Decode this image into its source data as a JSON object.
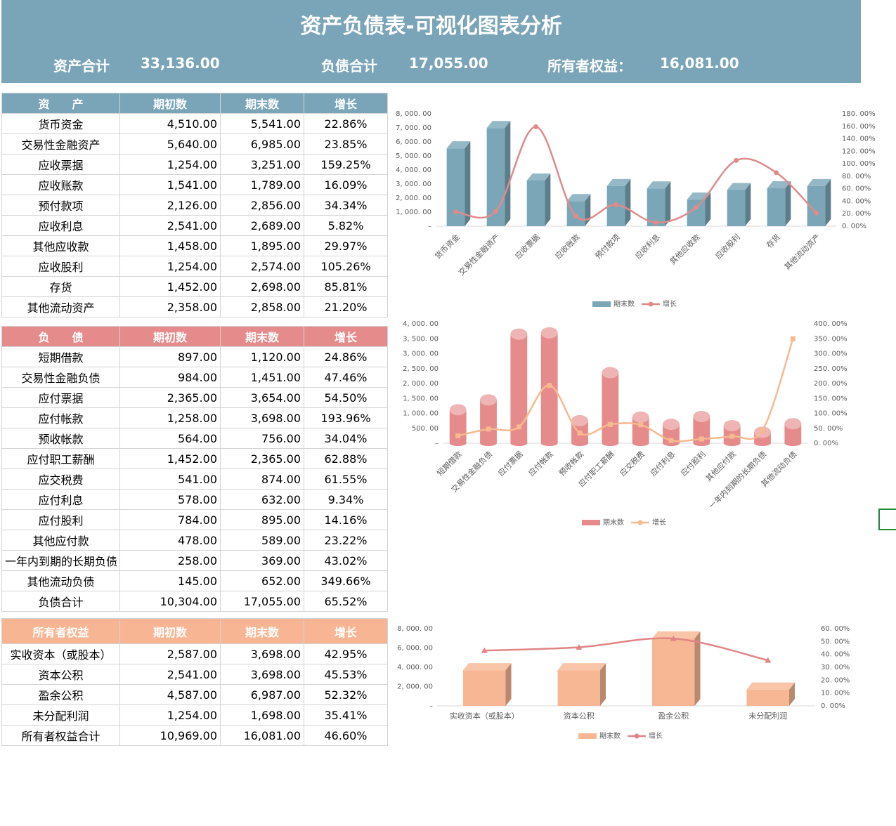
{
  "header": {
    "title": "资产负债表-可视化图表分析",
    "summary": [
      {
        "label": "资产合计",
        "value": "33,136.00"
      },
      {
        "label": "负债合计",
        "value": "17,055.00"
      },
      {
        "label": "所有者权益：",
        "value": "16,081.00"
      }
    ]
  },
  "tables": [
    {
      "header": [
        "资　　产",
        "期初数",
        "期末数",
        "增长"
      ],
      "rows": [
        [
          "货币资金",
          "4,510.00",
          "5,541.00",
          "22.86%"
        ],
        [
          "交易性金融资产",
          "5,640.00",
          "6,985.00",
          "23.85%"
        ],
        [
          "应收票据",
          "1,254.00",
          "3,251.00",
          "159.25%"
        ],
        [
          "应收账款",
          "1,541.00",
          "1,789.00",
          "16.09%"
        ],
        [
          "预付款项",
          "2,126.00",
          "2,856.00",
          "34.34%"
        ],
        [
          "应收利息",
          "2,541.00",
          "2,689.00",
          "5.82%"
        ],
        [
          "其他应收款",
          "1,458.00",
          "1,895.00",
          "29.97%"
        ],
        [
          "应收股利",
          "1,254.00",
          "2,574.00",
          "105.26%"
        ],
        [
          "存货",
          "1,452.00",
          "2,698.00",
          "85.81%"
        ],
        [
          "其他流动资产",
          "2,358.00",
          "2,858.00",
          "21.20%"
        ]
      ]
    },
    {
      "header": [
        "负　　债",
        "期初数",
        "期末数",
        "增长"
      ],
      "rows": [
        [
          "短期借款",
          "897.00",
          "1,120.00",
          "24.86%"
        ],
        [
          "交易性金融负债",
          "984.00",
          "1,451.00",
          "47.46%"
        ],
        [
          "应付票据",
          "2,365.00",
          "3,654.00",
          "54.50%"
        ],
        [
          "应付帐款",
          "1,258.00",
          "3,698.00",
          "193.96%"
        ],
        [
          "预收帐款",
          "564.00",
          "756.00",
          "34.04%"
        ],
        [
          "应付职工薪酬",
          "1,452.00",
          "2,365.00",
          "62.88%"
        ],
        [
          "应交税费",
          "541.00",
          "874.00",
          "61.55%"
        ],
        [
          "应付利息",
          "578.00",
          "632.00",
          "9.34%"
        ],
        [
          "应付股利",
          "784.00",
          "895.00",
          "14.16%"
        ],
        [
          "其他应付款",
          "478.00",
          "589.00",
          "23.22%"
        ],
        [
          "一年内到期的长期负债",
          "258.00",
          "369.00",
          "43.02%"
        ],
        [
          "其他流动负债",
          "145.00",
          "652.00",
          "349.66%"
        ],
        [
          "负债合计",
          "10,304.00",
          "17,055.00",
          "65.52%"
        ]
      ]
    },
    {
      "header": [
        "所有者权益",
        "期初数",
        "期末数",
        "增长"
      ],
      "rows": [
        [
          "实收资本（或股本）",
          "2,587.00",
          "3,698.00",
          "42.95%"
        ],
        [
          "资本公积",
          "2,541.00",
          "3,698.00",
          "45.53%"
        ],
        [
          "盈余公积",
          "4,587.00",
          "6,987.00",
          "52.32%"
        ],
        [
          "未分配利润",
          "1,254.00",
          "1,698.00",
          "35.41%"
        ],
        [
          "所有者权益合计",
          "10,969.00",
          "16,081.00",
          "46.60%"
        ]
      ]
    }
  ],
  "chart_data": [
    {
      "type": "bar",
      "bar_shape": "box",
      "categories": [
        "货币资金",
        "交易性金融资产",
        "应收票据",
        "应收账款",
        "预付款项",
        "应收利息",
        "其他应收款",
        "应收股利",
        "存货",
        "其他流动资产"
      ],
      "series": [
        {
          "name": "期末数",
          "color": "#7aa6b8",
          "values": [
            5541,
            6985,
            3251,
            1789,
            2856,
            2689,
            1895,
            2574,
            2698,
            2858
          ]
        },
        {
          "name": "增长",
          "color": "#e08a8a",
          "axis": "y2",
          "type": "line",
          "marker": "circle",
          "values": [
            22.86,
            23.85,
            159.25,
            16.09,
            34.34,
            5.82,
            29.97,
            105.26,
            85.81,
            21.2
          ]
        }
      ],
      "ylim": [
        0,
        8000
      ],
      "yticks": [
        {
          "value": 0,
          "label": "–"
        },
        {
          "value": 1000,
          "label": "1, 000. 00"
        },
        {
          "value": 2000,
          "label": "2, 000. 00"
        },
        {
          "value": 3000,
          "label": "3, 000. 00"
        },
        {
          "value": 4000,
          "label": "4, 000. 00"
        },
        {
          "value": 5000,
          "label": "5, 000. 00"
        },
        {
          "value": 6000,
          "label": "6, 000. 00"
        },
        {
          "value": 7000,
          "label": "7, 000. 00"
        },
        {
          "value": 8000,
          "label": "8, 000. 00"
        }
      ],
      "y2lim": [
        0,
        180
      ],
      "y2ticks": [
        {
          "value": 0,
          "label": "0. 00%"
        },
        {
          "value": 20,
          "label": "20. 00%"
        },
        {
          "value": 40,
          "label": "40. 00%"
        },
        {
          "value": 60,
          "label": "60. 00%"
        },
        {
          "value": 80,
          "label": "80. 00%"
        },
        {
          "value": 100,
          "label": "100. 00%"
        },
        {
          "value": 120,
          "label": "120. 00%"
        },
        {
          "value": 140,
          "label": "140. 00%"
        },
        {
          "value": 160,
          "label": "160. 00%"
        },
        {
          "value": 180,
          "label": "180. 00%"
        }
      ]
    },
    {
      "type": "bar",
      "bar_shape": "cylinder",
      "categories": [
        "短期借款",
        "交易性金融负债",
        "应付票据",
        "应付帐款",
        "预收帐款",
        "应付职工薪酬",
        "应交税费",
        "应付利息",
        "应付股利",
        "其他应付款",
        "一年内到期的长期负债",
        "其他流动负债"
      ],
      "series": [
        {
          "name": "期末数",
          "color": "#e68b8b",
          "values": [
            1120,
            1451,
            3654,
            3698,
            756,
            2365,
            874,
            632,
            895,
            589,
            369,
            652
          ]
        },
        {
          "name": "增长",
          "color": "#f7b98f",
          "axis": "y2",
          "type": "line",
          "marker": "square",
          "values": [
            24.86,
            47.46,
            54.5,
            193.96,
            34.04,
            62.88,
            61.55,
            9.34,
            14.16,
            23.22,
            43.02,
            349.66
          ]
        }
      ],
      "ylim": [
        0,
        4000
      ],
      "yticks": [
        {
          "value": 0,
          "label": "–"
        },
        {
          "value": 500,
          "label": "500. 00"
        },
        {
          "value": 1000,
          "label": "1, 000. 00"
        },
        {
          "value": 1500,
          "label": "1, 500. 00"
        },
        {
          "value": 2000,
          "label": "2, 000. 00"
        },
        {
          "value": 2500,
          "label": "2, 500. 00"
        },
        {
          "value": 3000,
          "label": "3, 000. 00"
        },
        {
          "value": 3500,
          "label": "3, 500. 00"
        },
        {
          "value": 4000,
          "label": "4, 000. 00"
        }
      ],
      "y2lim": [
        0,
        400
      ],
      "y2ticks": [
        {
          "value": 0,
          "label": "0. 00%"
        },
        {
          "value": 50,
          "label": "50. 00%"
        },
        {
          "value": 100,
          "label": "100. 00%"
        },
        {
          "value": 150,
          "label": "150. 00%"
        },
        {
          "value": 200,
          "label": "200. 00%"
        },
        {
          "value": 250,
          "label": "250. 00%"
        },
        {
          "value": 300,
          "label": "300. 00%"
        },
        {
          "value": 350,
          "label": "350. 00%"
        },
        {
          "value": 400,
          "label": "400. 00%"
        }
      ]
    },
    {
      "type": "bar",
      "bar_shape": "box",
      "categories": [
        "实收资本（或股本）",
        "资本公积",
        "盈余公积",
        "未分配利润"
      ],
      "series": [
        {
          "name": "期末数",
          "color": "#f7b694",
          "values": [
            3698,
            3698,
            6987,
            1698
          ]
        },
        {
          "name": "增长",
          "color": "#e08585",
          "axis": "y2",
          "type": "line",
          "marker": "triangle",
          "values": [
            42.95,
            45.53,
            52.32,
            35.41
          ]
        }
      ],
      "ylim": [
        0,
        8000
      ],
      "yticks": [
        {
          "value": 0,
          "label": "–"
        },
        {
          "value": 2000,
          "label": "2, 000. 00"
        },
        {
          "value": 4000,
          "label": "4, 000. 00"
        },
        {
          "value": 6000,
          "label": "6, 000. 00"
        },
        {
          "value": 8000,
          "label": "8, 000. 00"
        }
      ],
      "y2lim": [
        0,
        60
      ],
      "y2ticks": [
        {
          "value": 0,
          "label": "0. 00%"
        },
        {
          "value": 10,
          "label": "10. 00%"
        },
        {
          "value": 20,
          "label": "20. 00%"
        },
        {
          "value": 30,
          "label": "30. 00%"
        },
        {
          "value": 40,
          "label": "40. 00%"
        },
        {
          "value": 50,
          "label": "50. 00%"
        },
        {
          "value": 60,
          "label": "60. 00%"
        }
      ]
    }
  ]
}
